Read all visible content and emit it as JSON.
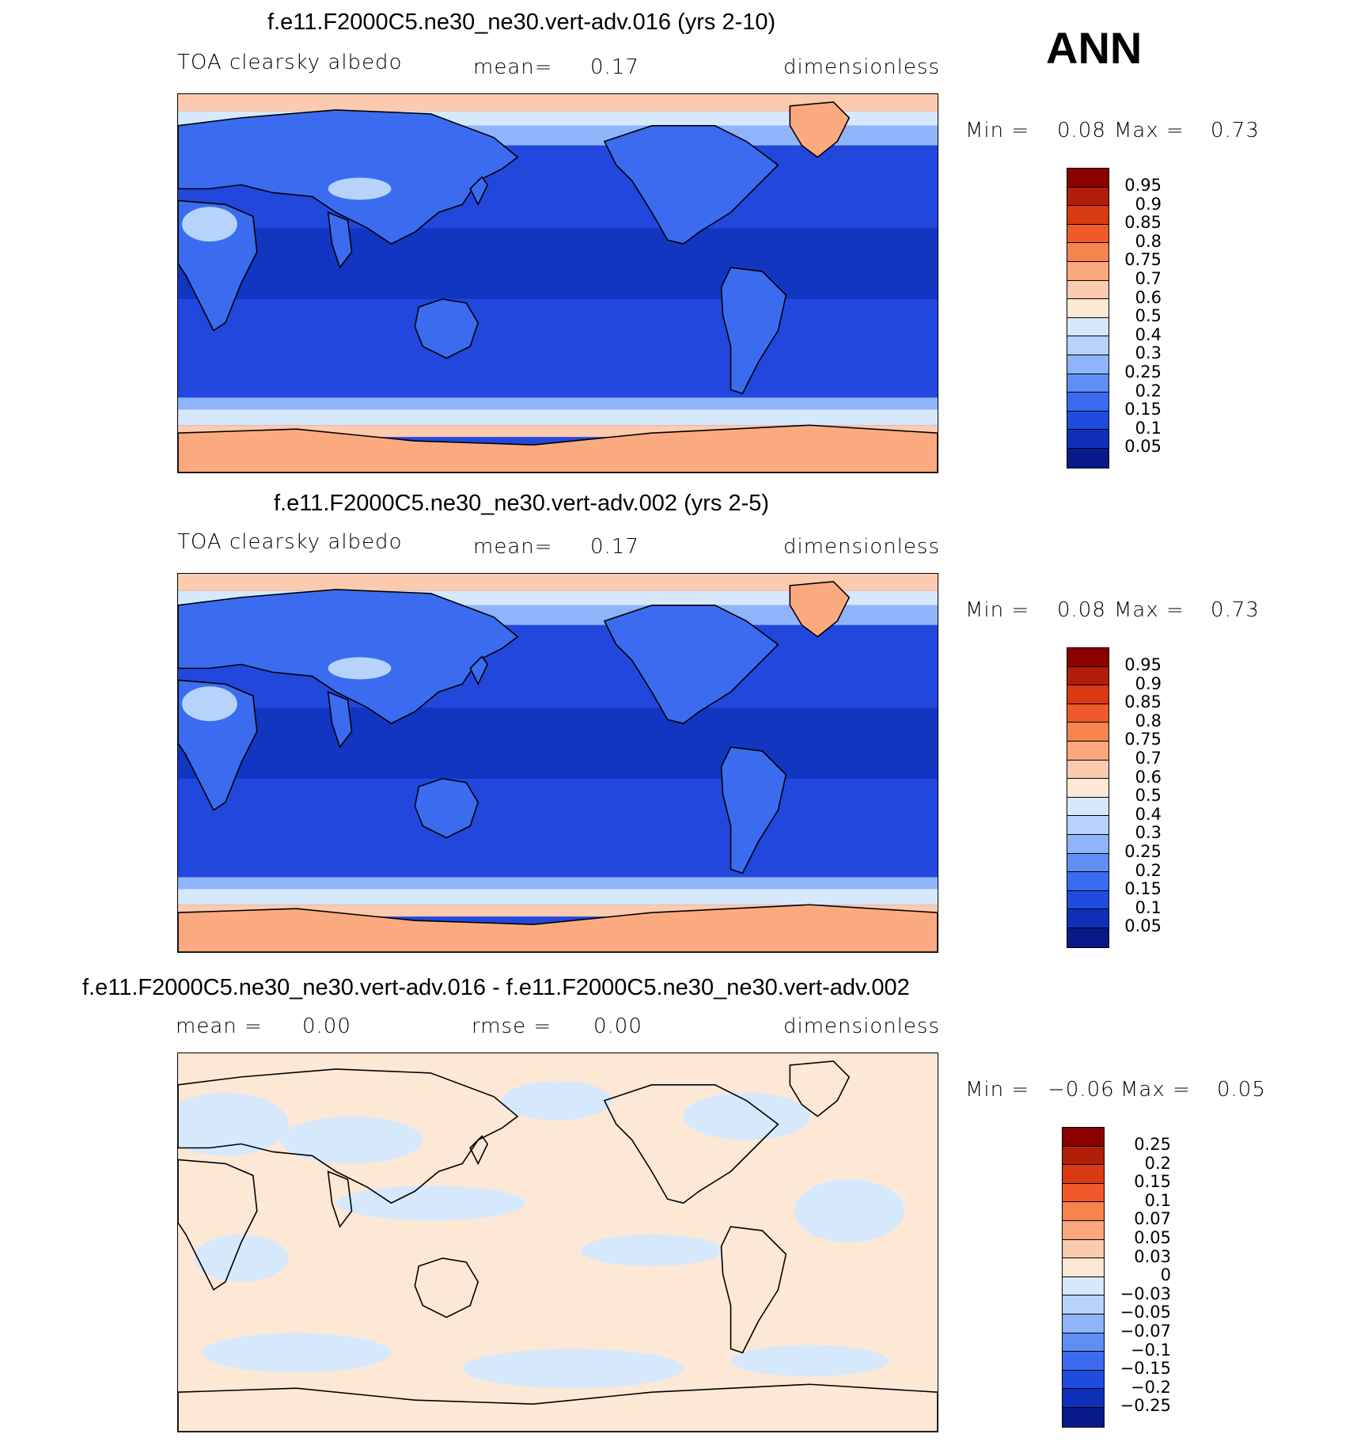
{
  "header": {
    "season": "ANN"
  },
  "panels": [
    {
      "title": "f.e11.F2000C5.ne30_ne30.vert-adv.016 (yrs 2-10)",
      "left_label": "TOA clearsky albedo",
      "mid_label": "mean=",
      "mid_value": "0.17",
      "units": "dimensionless",
      "min_label": "Min =",
      "min_value": "0.08",
      "max_label": "Max =",
      "max_value": "0.73",
      "levels": [
        "0.95",
        "0.9",
        "0.85",
        "0.8",
        "0.75",
        "0.7",
        "0.6",
        "0.5",
        "0.4",
        "0.3",
        "0.25",
        "0.2",
        "0.15",
        "0.1",
        "0.05"
      ],
      "kind": "field"
    },
    {
      "title": "f.e11.F2000C5.ne30_ne30.vert-adv.002 (yrs 2-5)",
      "left_label": "TOA clearsky albedo",
      "mid_label": "mean=",
      "mid_value": "0.17",
      "units": "dimensionless",
      "min_label": "Min =",
      "min_value": "0.08",
      "max_label": "Max =",
      "max_value": "0.73",
      "levels": [
        "0.95",
        "0.9",
        "0.85",
        "0.8",
        "0.75",
        "0.7",
        "0.6",
        "0.5",
        "0.4",
        "0.3",
        "0.25",
        "0.2",
        "0.15",
        "0.1",
        "0.05"
      ],
      "kind": "field"
    },
    {
      "title": "f.e11.F2000C5.ne30_ne30.vert-adv.016 - f.e11.F2000C5.ne30_ne30.vert-adv.002",
      "left_label": "mean =",
      "left_value": "0.00",
      "mid_label": "rmse =",
      "mid_value": "0.00",
      "units": "dimensionless",
      "min_label": "Min =",
      "min_value": "−0.06",
      "max_label": "Max =",
      "max_value": "0.05",
      "levels": [
        "0.25",
        "0.2",
        "0.15",
        "0.1",
        "0.07",
        "0.05",
        "0.03",
        "0",
        "−0.03",
        "−0.05",
        "−0.07",
        "−0.1",
        "−0.15",
        "−0.2",
        "−0.25"
      ],
      "kind": "diff"
    }
  ],
  "colors": {
    "scale": [
      "#8b0000",
      "#b01e0a",
      "#d93a12",
      "#f05a2a",
      "#f7834e",
      "#fba87e",
      "#fccaaf",
      "#fde8d6",
      "#d6e8fb",
      "#b8d3fb",
      "#8fb4fa",
      "#5f8ff5",
      "#3b6cf0",
      "#1f4ce0",
      "#0f2fb8",
      "#071a8a"
    ],
    "ocean_band": "#2247dd",
    "tropics": "#1236c2",
    "land_blue": "#3b6cf0",
    "ice": "#fbaa80",
    "ice_edge": "#fccaaf",
    "diff_pos": "#fde8d6",
    "diff_neg": "#d6e8fb"
  }
}
